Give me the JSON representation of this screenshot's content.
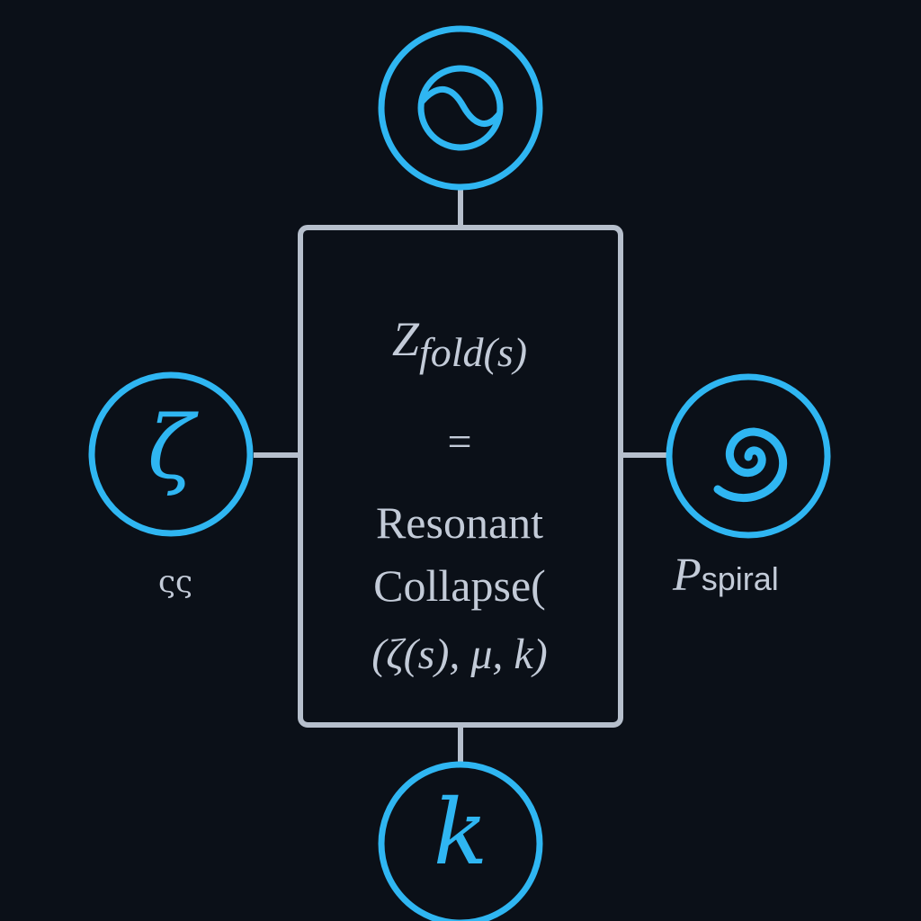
{
  "formula": {
    "z_symbol": "Z",
    "z_subscript": "fold",
    "z_argument": "(s)",
    "equals": "=",
    "word_1": "Resonant",
    "word_2": "Collapse(",
    "arguments": "(ζ(s), μ, k)"
  },
  "nodes": {
    "top": {
      "icon": "wave-circle-icon"
    },
    "left": {
      "glyph": "ζ",
      "label": "ςς"
    },
    "right": {
      "icon": "spiral-icon",
      "label_symbol": "P",
      "label_subscript": "spiral"
    },
    "bottom": {
      "glyph": "k"
    }
  },
  "colors": {
    "background": "#0b1018",
    "accent": "#2fb6f2",
    "box_stroke": "#b6bfcc",
    "text": "#c3cbd8"
  }
}
